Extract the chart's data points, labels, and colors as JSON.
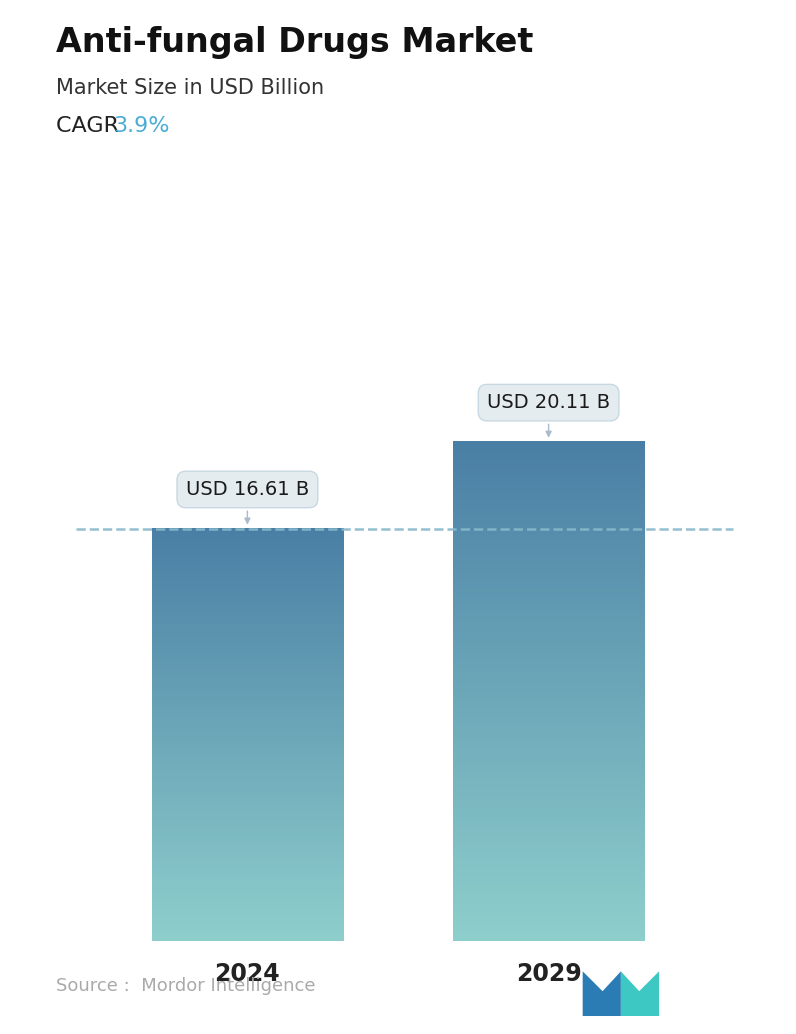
{
  "title": "Anti-fungal Drugs Market",
  "subtitle": "Market Size in USD Billion",
  "cagr_label": "CAGR ",
  "cagr_value": "3.9%",
  "cagr_color": "#4BACD6",
  "categories": [
    "2024",
    "2029"
  ],
  "values": [
    16.61,
    20.11
  ],
  "labels": [
    "USD 16.61 B",
    "USD 20.11 B"
  ],
  "bar_color_top": "#4A7FA5",
  "bar_color_bottom": "#8ECFCC",
  "dashed_line_color": "#88B8CC",
  "dashed_line_value": 16.61,
  "source_text": "Source :  Mordor Intelligence",
  "source_color": "#AAAAAA",
  "background_color": "#FFFFFF",
  "title_fontsize": 24,
  "subtitle_fontsize": 15,
  "cagr_fontsize": 16,
  "label_fontsize": 14,
  "tick_fontsize": 17,
  "source_fontsize": 13,
  "ylim": [
    0,
    25
  ],
  "bar_width": 0.28,
  "positions": [
    0.28,
    0.72
  ]
}
